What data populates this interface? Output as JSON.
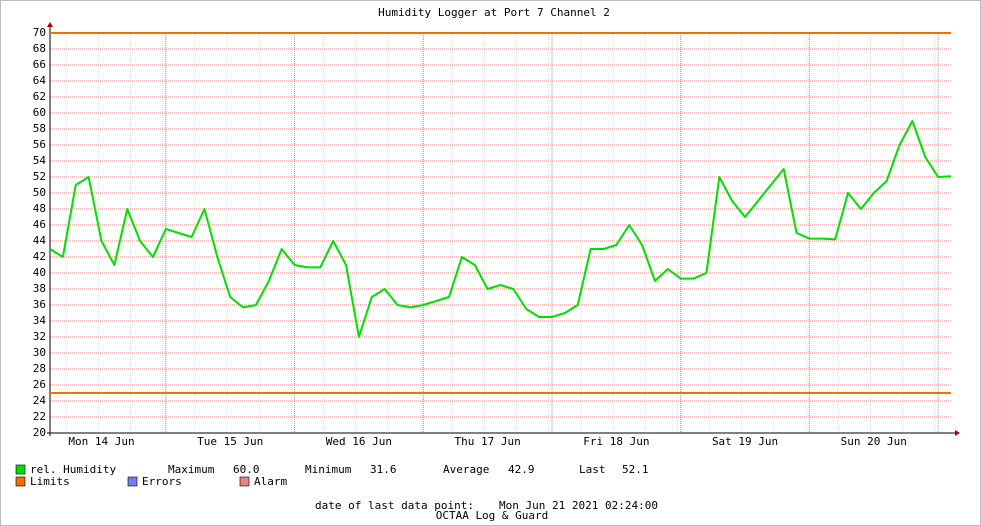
{
  "chart_data": {
    "type": "line",
    "title": "Humidity Logger at Port 7 Channel 2",
    "categories": [
      null,
      null,
      null,
      null,
      "Mon 14 Jun",
      null,
      null,
      null,
      null,
      null,
      null,
      null,
      null,
      null,
      "Tue 15 Jun",
      null,
      null,
      null,
      null,
      null,
      null,
      null,
      null,
      null,
      "Wed 16 Jun",
      null,
      null,
      null,
      null,
      null,
      null,
      null,
      null,
      null,
      "Thu 17 Jun",
      null,
      null,
      null,
      null,
      null,
      null,
      null,
      null,
      null,
      "Fri 18 Jun",
      null,
      null,
      null,
      null,
      null,
      null,
      null,
      null,
      null,
      "Sat 19 Jun",
      null,
      null,
      null,
      null,
      null,
      null,
      null,
      null,
      null,
      "Sun 20 Jun",
      null,
      null,
      null,
      null,
      null,
      null
    ],
    "series": [
      {
        "name": "rel. Humidity",
        "color": "#00e000",
        "values": [
          43,
          42,
          51,
          52,
          44,
          41,
          48,
          44,
          42,
          45.5,
          45,
          44.5,
          48,
          42,
          37,
          35.7,
          36,
          39,
          43,
          41,
          40.7,
          40.7,
          44,
          41,
          32,
          37,
          38,
          36,
          35.7,
          36,
          36.5,
          37,
          42,
          41,
          38,
          38.5,
          38,
          35.5,
          34.5,
          34.5,
          35,
          36,
          43,
          43,
          43.5,
          46,
          43.5,
          39,
          40.5,
          39.3,
          39.3,
          40,
          52,
          49,
          47,
          49,
          51,
          53,
          45,
          44.3,
          44.3,
          44.2,
          50,
          48,
          50,
          51.5,
          56,
          59,
          54.5,
          52,
          52.1
        ]
      }
    ],
    "limits": {
      "name": "Limits",
      "color": "#f07000",
      "values": [
        70,
        25
      ]
    },
    "errors": {
      "name": "Errors",
      "color": "#7080f0"
    },
    "alarm": {
      "name": "Alarm",
      "color": "#f08080"
    },
    "stats": [
      {
        "name": "Maximum",
        "value": 60.0,
        "label": "60.0"
      },
      {
        "name": "Minimum",
        "value": 31.6,
        "label": "31.6"
      },
      {
        "name": "Average",
        "value": 42.9,
        "label": "42.9"
      },
      {
        "name": "Last",
        "value": 52.1,
        "label": "52.1"
      }
    ],
    "footer_label": "date of last data point:",
    "footer_value": "Mon Jun 21 2021 02:24:00",
    "watermark": "OCTAA Log & Guard",
    "ylim": [
      20,
      70
    ],
    "yticks": [
      20,
      22,
      24,
      26,
      28,
      30,
      32,
      34,
      36,
      38,
      40,
      42,
      44,
      46,
      48,
      50,
      52,
      54,
      56,
      58,
      60,
      62,
      64,
      66,
      68,
      70
    ],
    "grid": true
  }
}
